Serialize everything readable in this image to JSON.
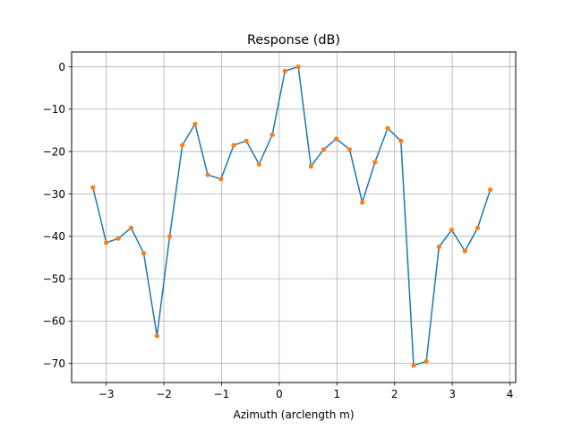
{
  "chart_data": {
    "type": "line",
    "title": "Response (dB)",
    "xlabel": "Azimuth (arclength m)",
    "ylabel": "",
    "xlim": [
      -3.6,
      4.1
    ],
    "ylim": [
      -74.5,
      3.5
    ],
    "xticks": [
      -3,
      -2,
      -1,
      0,
      1,
      2,
      3,
      4
    ],
    "xtick_labels": [
      "−3",
      "−2",
      "−1",
      "0",
      "1",
      "2",
      "3",
      "4"
    ],
    "yticks": [
      0,
      -10,
      -20,
      -30,
      -40,
      -50,
      -60,
      -70
    ],
    "ytick_labels": [
      "0",
      "−10",
      "−20",
      "−30",
      "−40",
      "−50",
      "−60",
      "−70"
    ],
    "grid": true,
    "series": [
      {
        "line_color": "#1f77b4",
        "marker_color": "#ff7f0e",
        "x": [
          -3.23,
          -3.0,
          -2.79,
          -2.57,
          -2.35,
          -2.12,
          -1.9,
          -1.68,
          -1.46,
          -1.24,
          -1.01,
          -0.79,
          -0.57,
          -0.35,
          -0.12,
          0.1,
          0.33,
          0.55,
          0.77,
          0.99,
          1.22,
          1.44,
          1.66,
          1.88,
          2.11,
          2.33,
          2.55,
          2.77,
          2.99,
          3.22,
          3.44,
          3.66
        ],
        "y": [
          -28.5,
          -41.5,
          -40.5,
          -38.0,
          -44.0,
          -63.5,
          -40.0,
          -18.5,
          -13.5,
          -25.5,
          -26.5,
          -18.5,
          -17.5,
          -23.0,
          -16.0,
          -1.0,
          0.0,
          -23.5,
          -19.5,
          -17.0,
          -19.5,
          -32.0,
          -22.5,
          -14.5,
          -17.5,
          -70.5,
          -69.5,
          -42.5,
          -38.5,
          -43.5,
          -38.0,
          -29.0
        ]
      }
    ]
  }
}
